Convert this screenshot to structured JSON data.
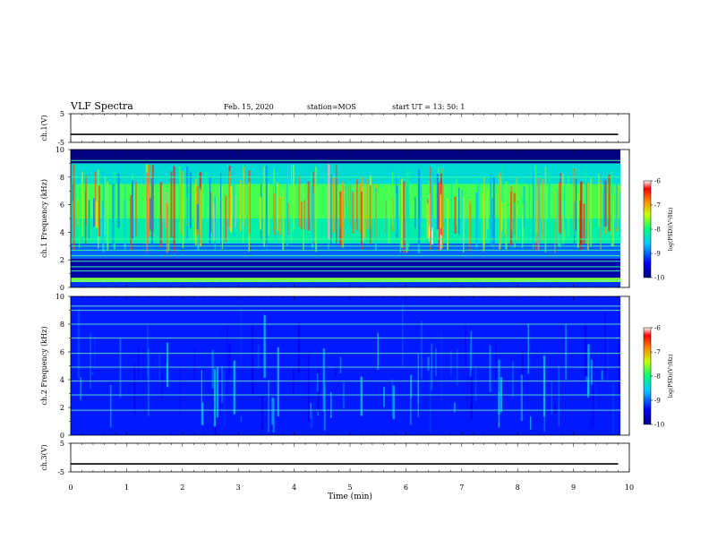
{
  "header": {
    "title": "VLF Spectra",
    "date": "Feb. 15, 2020",
    "station": "station=MOS",
    "start": "start UT = 13: 50: 1"
  },
  "chart_data": [
    {
      "type": "line",
      "panel": "ch1-voltage",
      "ylabel": "ch.1(V)",
      "ylim": [
        -5,
        5
      ],
      "y_ticks": [
        "5",
        "-5"
      ],
      "series": [
        {
          "x": [
            0,
            9.8
          ],
          "values": [
            -2.2,
            -2.2
          ]
        }
      ]
    },
    {
      "type": "heatmap",
      "panel": "ch1-spectrogram",
      "ylabel": "ch.1 Frequency (kHz)",
      "ylim": [
        0,
        10
      ],
      "y_ticks": [
        "0",
        "2",
        "4",
        "6",
        "8",
        "10"
      ],
      "colorbar": {
        "label": "log(PSD)(V²/Hz)",
        "range": [
          -10,
          -6
        ],
        "ticks": [
          "-6",
          "-7",
          "-8",
          "-9",
          "-10"
        ]
      },
      "bands": [
        {
          "fmin": 0.0,
          "fmax": 0.4,
          "level": -9.2
        },
        {
          "fmin": 0.4,
          "fmax": 0.7,
          "level": -7.6
        },
        {
          "fmin": 0.7,
          "fmax": 2.1,
          "level": -9.8
        },
        {
          "fmin": 2.1,
          "fmax": 3.2,
          "level": -9.0
        },
        {
          "fmin": 3.2,
          "fmax": 5.0,
          "level": -8.2
        },
        {
          "fmin": 5.0,
          "fmax": 7.5,
          "level": -7.8
        },
        {
          "fmin": 7.5,
          "fmax": 9.0,
          "level": -8.4
        },
        {
          "fmin": 9.0,
          "fmax": 10.0,
          "level": -10.0
        }
      ]
    },
    {
      "type": "heatmap",
      "panel": "ch2-spectrogram",
      "ylabel": "ch.2 Frequency (kHz)",
      "ylim": [
        0,
        10
      ],
      "y_ticks": [
        "0",
        "2",
        "4",
        "6",
        "8",
        "10"
      ],
      "colorbar": {
        "label": "log(PSD)(V²/Hz)",
        "range": [
          -10,
          -6
        ],
        "ticks": [
          "-6",
          "-7",
          "-8",
          "-9",
          "-10"
        ]
      },
      "bands": [
        {
          "fmin": 0.0,
          "fmax": 10.0,
          "level": -9.3
        }
      ],
      "lines_khz": [
        1.8,
        2.9,
        3.9,
        4.9,
        5.9,
        7.0,
        8.0,
        9.0,
        9.3
      ]
    },
    {
      "type": "line",
      "panel": "ch3-voltage",
      "ylabel": "ch.3(V)",
      "ylim": [
        -5,
        5
      ],
      "y_ticks": [
        "5",
        "-5"
      ],
      "series": [
        {
          "x": [
            0,
            9.8
          ],
          "values": [
            -2.2,
            -2.2
          ]
        }
      ]
    }
  ],
  "x_axis": {
    "label": "Time (min)",
    "xlim": [
      0,
      10
    ],
    "ticks": [
      "0",
      "1",
      "2",
      "3",
      "4",
      "5",
      "6",
      "7",
      "8",
      "9",
      "10"
    ]
  }
}
